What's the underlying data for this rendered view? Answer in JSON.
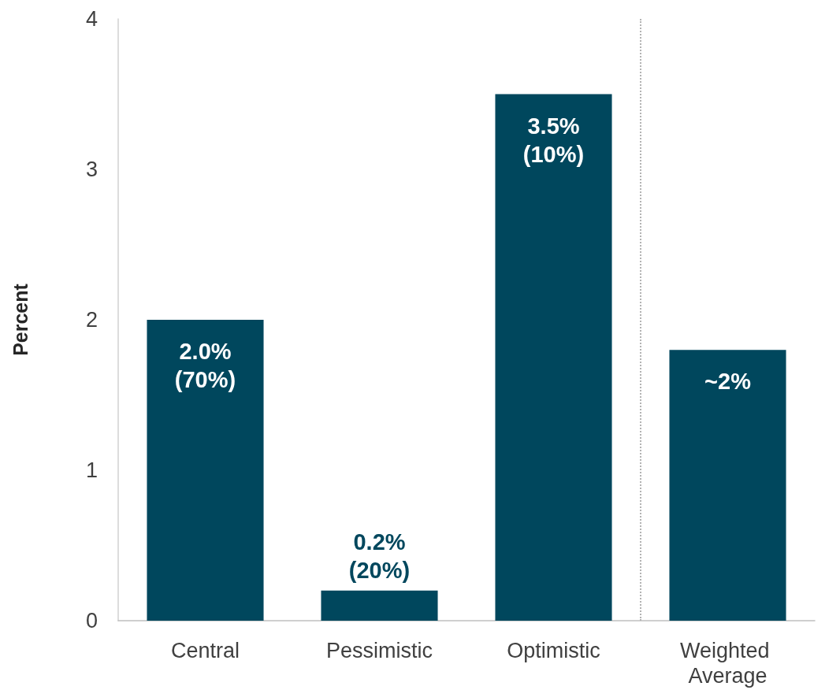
{
  "chart_data": {
    "type": "bar",
    "ylabel": "Percent",
    "categories": [
      "Central",
      "Pessimistic",
      "Optimistic",
      "Weighted Average"
    ],
    "values": [
      2.0,
      0.2,
      3.5,
      1.8
    ],
    "value_labels": [
      "2.0% (70%)",
      "0.2% (20%)",
      "3.5% (10%)",
      "~2%"
    ],
    "color": "#00475d",
    "ylim": [
      0,
      4
    ],
    "yticks": [
      0,
      1,
      2,
      3,
      4
    ],
    "grid": false
  }
}
